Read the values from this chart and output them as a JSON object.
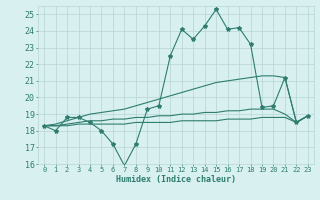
{
  "xlabel": "Humidex (Indice chaleur)",
  "x": [
    0,
    1,
    2,
    3,
    4,
    5,
    6,
    7,
    8,
    9,
    10,
    11,
    12,
    13,
    14,
    15,
    16,
    17,
    18,
    19,
    20,
    21,
    22,
    23
  ],
  "line_main": [
    18.3,
    18.0,
    18.8,
    18.8,
    18.5,
    18.0,
    17.2,
    15.9,
    17.2,
    19.3,
    19.5,
    22.5,
    24.1,
    23.5,
    24.3,
    25.3,
    24.1,
    24.2,
    23.2,
    19.4,
    19.5,
    21.2,
    18.5,
    18.9
  ],
  "line_upper": [
    18.3,
    18.4,
    18.6,
    18.8,
    19.0,
    19.1,
    19.2,
    19.3,
    19.5,
    19.7,
    19.9,
    20.1,
    20.3,
    20.5,
    20.7,
    20.9,
    21.0,
    21.1,
    21.2,
    21.3,
    21.3,
    21.2,
    18.5,
    18.9
  ],
  "line_mid": [
    18.3,
    18.3,
    18.4,
    18.5,
    18.6,
    18.6,
    18.7,
    18.7,
    18.8,
    18.8,
    18.9,
    18.9,
    19.0,
    19.0,
    19.1,
    19.1,
    19.2,
    19.2,
    19.3,
    19.3,
    19.3,
    19.0,
    18.5,
    18.9
  ],
  "line_flat": [
    18.3,
    18.3,
    18.3,
    18.4,
    18.4,
    18.4,
    18.4,
    18.4,
    18.5,
    18.5,
    18.5,
    18.5,
    18.6,
    18.6,
    18.6,
    18.6,
    18.7,
    18.7,
    18.7,
    18.8,
    18.8,
    18.8,
    18.5,
    18.9
  ],
  "color": "#2e7d6e",
  "bg_color": "#d8f0f0",
  "grid_color": "#b8d4d4",
  "ylim": [
    16,
    25.5
  ],
  "xlim": [
    -0.5,
    23.5
  ],
  "yticks": [
    16,
    17,
    18,
    19,
    20,
    21,
    22,
    23,
    24,
    25
  ],
  "xticks": [
    0,
    1,
    2,
    3,
    4,
    5,
    6,
    7,
    8,
    9,
    10,
    11,
    12,
    13,
    14,
    15,
    16,
    17,
    18,
    19,
    20,
    21,
    22,
    23
  ]
}
